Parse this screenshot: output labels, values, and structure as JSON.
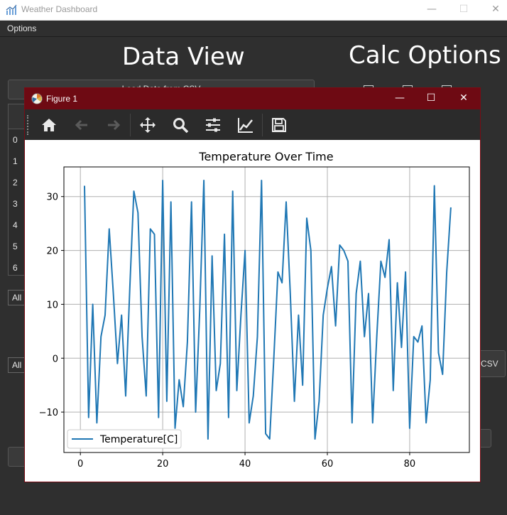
{
  "window": {
    "title": "Weather Dashboard",
    "minimize_glyph": "—",
    "maximize_glyph": "☐",
    "close_glyph": "✕",
    "icon": "chart-app-icon"
  },
  "menu": {
    "options_label": "Options"
  },
  "main": {
    "data_view_heading": "Data View",
    "calc_options_heading": "Calc Options",
    "load_button_label": "Load Data from CSV",
    "row_labels": [
      "0",
      "1",
      "2",
      "3",
      "4",
      "5",
      "6"
    ],
    "combo_1_value": "All",
    "combo_2_value": "All",
    "export_button_partial": "CSV"
  },
  "figure": {
    "title": "Figure 1",
    "icon": "matplotlib-icon",
    "toolbar": {
      "home": "home-icon",
      "back": "back-arrow-icon",
      "forward": "forward-arrow-icon",
      "pan": "pan-icon",
      "zoom": "zoom-icon",
      "subplots": "subplots-config-icon",
      "edit": "edit-axis-icon",
      "save": "save-icon"
    },
    "colors": {
      "line": "#1f77b4",
      "titlebar": "#6e0a13",
      "toolbar": "#2b2b2b"
    }
  },
  "chart_data": {
    "type": "line",
    "title": "Temperature Over Time",
    "xlabel": "",
    "ylabel": "",
    "xlim": [
      -4,
      94.5
    ],
    "ylim": [
      -17.5,
      35.5
    ],
    "x_ticks": [
      0,
      20,
      40,
      60,
      80
    ],
    "y_ticks": [
      -10,
      0,
      10,
      20,
      30
    ],
    "grid": true,
    "legend": {
      "placement": "lower-left",
      "entries": [
        "Temperature[C]"
      ]
    },
    "series": [
      {
        "name": "Temperature[C]",
        "x": [
          1,
          2,
          3,
          4,
          5,
          6,
          7,
          8,
          9,
          10,
          11,
          12,
          13,
          14,
          15,
          16,
          17,
          18,
          19,
          20,
          21,
          22,
          23,
          24,
          25,
          26,
          27,
          28,
          29,
          30,
          31,
          32,
          33,
          34,
          35,
          36,
          37,
          38,
          39,
          40,
          41,
          42,
          43,
          44,
          45,
          46,
          47,
          48,
          49,
          50,
          51,
          52,
          53,
          54,
          55,
          56,
          57,
          58,
          59,
          60,
          61,
          62,
          63,
          64,
          65,
          66,
          67,
          68,
          69,
          70,
          71,
          72,
          73,
          74,
          75,
          76,
          77,
          78,
          79,
          80,
          81,
          82,
          83,
          84,
          85,
          86,
          87,
          88,
          89,
          90
        ],
        "values": [
          32,
          -11,
          10,
          -12,
          4,
          8,
          24,
          12,
          -1,
          8,
          -7,
          13,
          31,
          27,
          4,
          -7,
          24,
          23,
          -11,
          33,
          -8,
          29,
          -13,
          -4,
          -9,
          3,
          29,
          -10,
          9,
          33,
          -15,
          19,
          -6,
          -1,
          23,
          -11,
          31,
          -6,
          8,
          20,
          -12,
          -7,
          4,
          33,
          -14,
          -15,
          0,
          16,
          14,
          29,
          12,
          -8,
          8,
          -5,
          26,
          20,
          -15,
          -8,
          8,
          13,
          17,
          6,
          21,
          20,
          18,
          -12,
          12,
          18,
          4,
          12,
          -12,
          4,
          18,
          15,
          22,
          -6,
          14,
          2,
          16,
          -13,
          4,
          3,
          6,
          -12,
          -4,
          32,
          1,
          -3,
          16,
          28
        ]
      }
    ]
  }
}
